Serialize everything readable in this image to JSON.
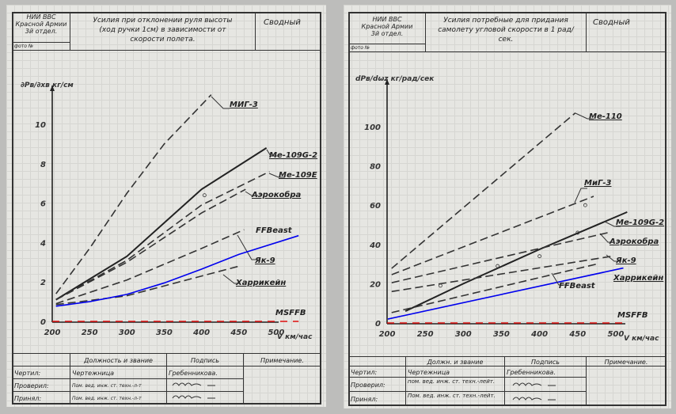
{
  "pages": [
    {
      "header": {
        "org": [
          "НИИ ВВС",
          "Красной Армии",
          "3й отдел."
        ],
        "photo": "фото №",
        "title": "Усилия при отклонении руля высоты (ход ручки 1см) в зависимости от скорости полета.",
        "kind": "Сводный"
      },
      "table": {
        "headers": [
          "",
          "Должность и звание",
          "Подпись",
          "Примечание."
        ],
        "rows": [
          {
            "role": "Чертил:",
            "position": "Чертежница",
            "signature": "Гребенникова."
          },
          {
            "role": "Проверил:",
            "position": "Пом. вед. инж. ст. техн.-л-т",
            "signature": ""
          },
          {
            "role": "Принял:",
            "position": "Пом. вед. инж. ст. техн.-л-т",
            "signature": ""
          }
        ]
      }
    },
    {
      "header": {
        "org": [
          "НИИ ВВС",
          "Красной Армии",
          "3й отдел."
        ],
        "photo": "фото №",
        "title": "Усилия потребные для придания самолету угловой скорости в 1 рад/сек.",
        "kind": "Сводный"
      },
      "table": {
        "headers": [
          "",
          "Должн. и звание",
          "Подпись",
          "Примечание."
        ],
        "rows": [
          {
            "role": "Чертил:",
            "position": "Чертежница",
            "signature": "Гребенникова."
          },
          {
            "role": "Проверил:",
            "position": "пом. вед. инж. ст. техн.-лейт.",
            "signature": ""
          },
          {
            "role": "Принял:",
            "position": "Пом. вед. инж. ст. техн.-лейт.",
            "signature": ""
          }
        ]
      }
    }
  ],
  "chart_data": [
    {
      "type": "line",
      "ylabel": "∂Pв/∂xв кг/см",
      "xlabel": "V км/час",
      "xlim": [
        200,
        500
      ],
      "ylim": [
        0,
        11.5
      ],
      "xticks": [
        200,
        250,
        300,
        350,
        400,
        450,
        500
      ],
      "yticks": [
        0,
        2,
        4,
        6,
        8,
        10
      ],
      "grid": true,
      "series": [
        {
          "name": "МИГ-3",
          "style": "dashed",
          "color": "#333333",
          "x": [
            205,
            250,
            300,
            350,
            413
          ],
          "y": [
            1.4,
            3.7,
            6.5,
            9.0,
            11.5
          ]
        },
        {
          "name": "Ме-109G-2",
          "style": "solid",
          "color": "#222222",
          "x": [
            205,
            300,
            400,
            487
          ],
          "y": [
            1.1,
            3.3,
            6.7,
            8.8
          ]
        },
        {
          "name": "Ме-109Е",
          "style": "dashed",
          "color": "#333333",
          "x": [
            205,
            300,
            400,
            491
          ],
          "y": [
            1.1,
            3.1,
            5.9,
            7.6
          ]
        },
        {
          "name": "Аэрокобра",
          "style": "dashed",
          "color": "#333333",
          "x": [
            205,
            300,
            400,
            459
          ],
          "y": [
            1.1,
            3.0,
            5.5,
            6.7
          ]
        },
        {
          "name": "Як-9",
          "style": "dashed",
          "color": "#333333",
          "x": [
            205,
            300,
            400,
            457
          ],
          "y": [
            0.9,
            2.1,
            3.7,
            4.65
          ]
        },
        {
          "name": "Харрикейн",
          "style": "dashed",
          "color": "#333333",
          "x": [
            205,
            300,
            400,
            450
          ],
          "y": [
            0.85,
            1.3,
            2.3,
            2.8
          ]
        },
        {
          "name": "FFBeast",
          "style": "solid",
          "color": "#0000ee",
          "x": [
            205,
            250,
            300,
            350,
            400,
            450,
            530
          ],
          "y": [
            0.77,
            1.0,
            1.37,
            1.95,
            2.65,
            3.4,
            4.35
          ]
        },
        {
          "name": "MSFFB",
          "style": "dashed",
          "color": "#e01010",
          "x": [
            200,
            530
          ],
          "y": [
            0,
            0
          ]
        }
      ],
      "markers": [
        {
          "x": 404,
          "y": 6.4
        }
      ]
    },
    {
      "type": "line",
      "ylabel": "dPв/dωz кг/рад/сек",
      "xlabel": "V км/час",
      "xlim": [
        200,
        500
      ],
      "ylim": [
        0,
        110
      ],
      "xticks": [
        200,
        250,
        300,
        350,
        400,
        450,
        500
      ],
      "yticks": [
        0,
        20,
        40,
        60,
        80,
        100
      ],
      "grid": true,
      "series": [
        {
          "name": "Ме-110",
          "style": "dashed",
          "color": "#333333",
          "x": [
            206,
            447
          ],
          "y": [
            27.8,
            107
          ]
        },
        {
          "name": "МиГ-3",
          "style": "dashed",
          "color": "#333333",
          "x": [
            206,
            471
          ],
          "y": [
            24.6,
            64.5
          ]
        },
        {
          "name": "Ме-109G-2",
          "style": "solid",
          "color": "#222222",
          "x": [
            224,
            300,
            400,
            515
          ],
          "y": [
            6,
            20,
            37.5,
            56.5
          ]
        },
        {
          "name": "Аэрокобра",
          "style": "dashed",
          "color": "#333333",
          "x": [
            206,
            494
          ],
          "y": [
            20.5,
            46.4
          ]
        },
        {
          "name": "Як-9",
          "style": "dashed",
          "color": "#333333",
          "x": [
            206,
            495
          ],
          "y": [
            16,
            34
          ]
        },
        {
          "name": "Харрикейн",
          "style": "dashed",
          "color": "#333333",
          "x": [
            206,
            475
          ],
          "y": [
            5.3,
            30
          ]
        },
        {
          "name": "FFBeast",
          "style": "solid",
          "color": "#0000ee",
          "x": [
            201,
            510
          ],
          "y": [
            2,
            28
          ]
        },
        {
          "name": "MSFFB",
          "style": "dashed",
          "color": "#e01010",
          "x": [
            200,
            515
          ],
          "y": [
            0,
            0
          ]
        }
      ],
      "markers": [
        {
          "x": 460,
          "y": 60
        },
        {
          "x": 450,
          "y": 46
        },
        {
          "x": 400,
          "y": 34
        },
        {
          "x": 345,
          "y": 29
        },
        {
          "x": 270,
          "y": 19
        }
      ]
    }
  ]
}
